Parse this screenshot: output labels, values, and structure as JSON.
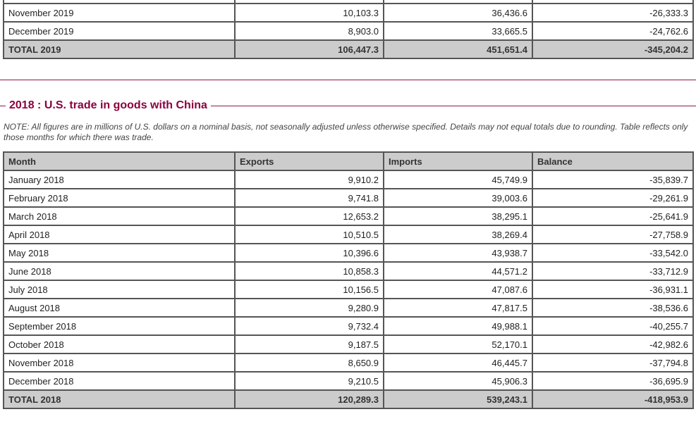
{
  "table2019": {
    "rows": [
      {
        "month": "",
        "exports": "",
        "imports": "",
        "balance": ""
      },
      {
        "month": "November 2019",
        "exports": "10,103.3",
        "imports": "36,436.6",
        "balance": "-26,333.3"
      },
      {
        "month": "December 2019",
        "exports": "8,903.0",
        "imports": "33,665.5",
        "balance": "-24,762.6"
      }
    ],
    "total": {
      "month": "TOTAL 2019",
      "exports": "106,447.3",
      "imports": "451,651.4",
      "balance": "-345,204.2"
    }
  },
  "section2018": {
    "title": "2018 : U.S. trade in goods with China",
    "note": "NOTE: All figures are in millions of U.S. dollars on a nominal basis, not seasonally adjusted unless otherwise specified. Details may not equal totals due to rounding. Table reflects only those months for which there was trade.",
    "headers": {
      "month": "Month",
      "exports": "Exports",
      "imports": "Imports",
      "balance": "Balance"
    },
    "rows": [
      {
        "month": "January 2018",
        "exports": "9,910.2",
        "imports": "45,749.9",
        "balance": "-35,839.7"
      },
      {
        "month": "February 2018",
        "exports": "9,741.8",
        "imports": "39,003.6",
        "balance": "-29,261.9"
      },
      {
        "month": "March 2018",
        "exports": "12,653.2",
        "imports": "38,295.1",
        "balance": "-25,641.9"
      },
      {
        "month": "April 2018",
        "exports": "10,510.5",
        "imports": "38,269.4",
        "balance": "-27,758.9"
      },
      {
        "month": "May 2018",
        "exports": "10,396.6",
        "imports": "43,938.7",
        "balance": "-33,542.0"
      },
      {
        "month": "June 2018",
        "exports": "10,858.3",
        "imports": "44,571.2",
        "balance": "-33,712.9"
      },
      {
        "month": "July 2018",
        "exports": "10,156.5",
        "imports": "47,087.6",
        "balance": "-36,931.1"
      },
      {
        "month": "August 2018",
        "exports": "9,280.9",
        "imports": "47,817.5",
        "balance": "-38,536.6"
      },
      {
        "month": "September 2018",
        "exports": "9,732.4",
        "imports": "49,988.1",
        "balance": "-40,255.7"
      },
      {
        "month": "October 2018",
        "exports": "9,187.5",
        "imports": "52,170.1",
        "balance": "-42,982.6"
      },
      {
        "month": "November 2018",
        "exports": "8,650.9",
        "imports": "46,445.7",
        "balance": "-37,794.8"
      },
      {
        "month": "December 2018",
        "exports": "9,210.5",
        "imports": "45,906.3",
        "balance": "-36,695.9"
      }
    ],
    "total": {
      "month": "TOTAL 2018",
      "exports": "120,289.3",
      "imports": "539,243.1",
      "balance": "-418,953.9"
    }
  }
}
